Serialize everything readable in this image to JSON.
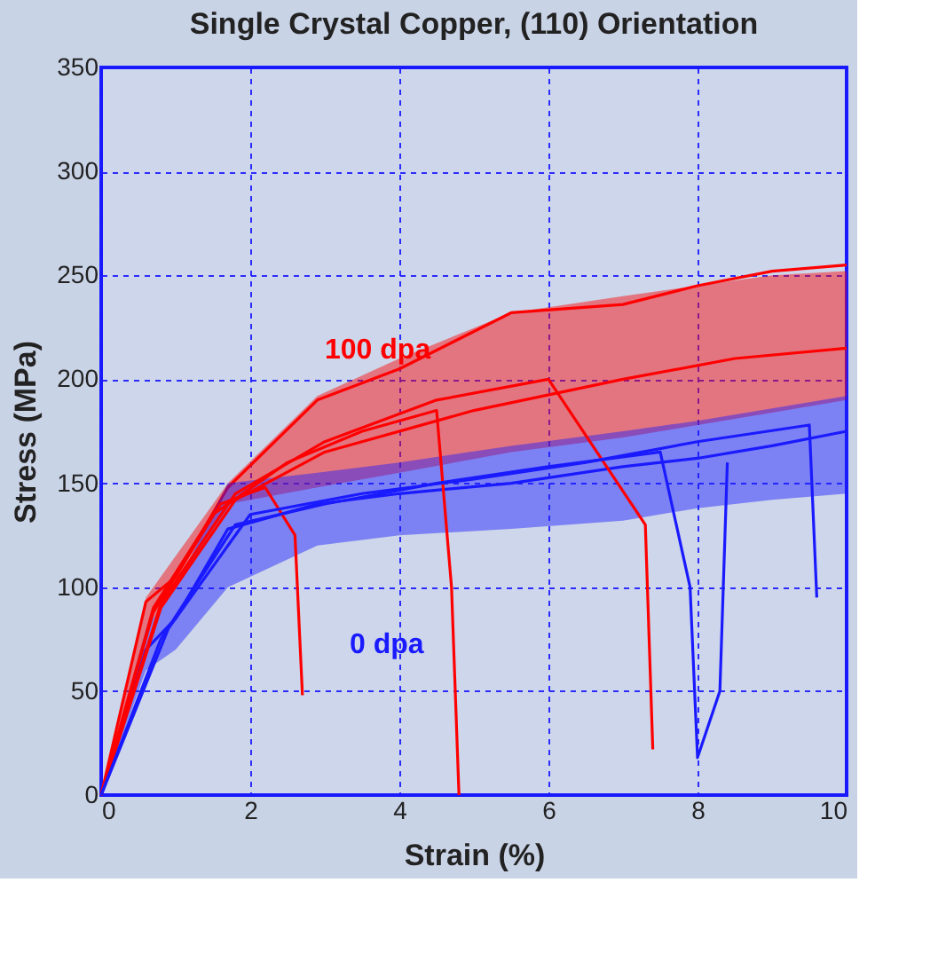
{
  "chart_data": {
    "type": "line",
    "title": "Single Crystal Copper, (110) Orientation",
    "xlabel": "Strain (%)",
    "ylabel": "Stress (MPa)",
    "xlim": [
      0,
      10
    ],
    "ylim": [
      0,
      350
    ],
    "xticks": [
      0,
      2,
      4,
      6,
      8,
      10
    ],
    "yticks": [
      0,
      50,
      100,
      150,
      200,
      250,
      300,
      350
    ],
    "grid": true,
    "line_style": "solid",
    "marker": "none",
    "series": [
      {
        "name": "100 dpa",
        "color": "#ff0000",
        "x": [
          0,
          0.6,
          1.0,
          1.7,
          2.9,
          4.0,
          5.5,
          7.0,
          8.0,
          9.0,
          10.0
        ],
        "values": [
          0,
          93,
          105,
          148,
          190,
          205,
          232,
          236,
          245,
          252,
          255
        ],
        "lower": [
          0,
          80,
          100,
          140,
          148,
          155,
          165,
          172,
          178,
          184,
          190
        ],
        "upper": [
          0,
          95,
          115,
          150,
          192,
          210,
          232,
          240,
          245,
          250,
          252
        ]
      },
      {
        "name": "0 dpa",
        "color": "#1a1aff",
        "x": [
          0,
          0.6,
          1.0,
          1.7,
          2.9,
          4.0,
          5.5,
          7.0,
          8.0,
          9.0,
          10.0
        ],
        "values": [
          0,
          70,
          85,
          128,
          140,
          145,
          150,
          158,
          162,
          168,
          175
        ],
        "lower": [
          0,
          60,
          70,
          100,
          120,
          125,
          128,
          132,
          138,
          142,
          145
        ],
        "upper": [
          0,
          80,
          100,
          150,
          155,
          160,
          168,
          175,
          180,
          186,
          192
        ]
      },
      {
        "color": "#ff0000",
        "x": [
          0,
          0.7,
          1.5,
          2.5,
          3.5,
          4.5,
          4.7,
          4.8
        ],
        "values": [
          0,
          90,
          135,
          160,
          175,
          185,
          100,
          0
        ]
      },
      {
        "color": "#ff0000",
        "x": [
          0,
          0.7,
          1.6,
          2.2,
          2.6,
          2.7
        ],
        "values": [
          0,
          88,
          140,
          148,
          125,
          48
        ]
      },
      {
        "color": "#ff0000",
        "x": [
          0,
          0.8,
          1.8,
          3.0,
          4.5,
          6.0,
          7.3,
          7.4
        ],
        "values": [
          0,
          92,
          145,
          170,
          190,
          200,
          130,
          22
        ]
      },
      {
        "color": "#ff0000",
        "x": [
          0,
          0.8,
          1.8,
          3.0,
          5.0,
          7.0,
          8.5,
          10.0
        ],
        "values": [
          0,
          90,
          142,
          165,
          185,
          200,
          210,
          215
        ]
      },
      {
        "color": "#1a1aff",
        "x": [
          0,
          0.8,
          1.8,
          3.0,
          4.5,
          6.0,
          7.5,
          7.9,
          8.0,
          8.3,
          8.4
        ],
        "values": [
          0,
          75,
          130,
          140,
          150,
          158,
          165,
          100,
          18,
          50,
          160
        ]
      },
      {
        "color": "#1a1aff",
        "x": [
          0,
          0.9,
          2.0,
          3.5,
          5.0,
          6.5,
          8.0,
          9.5,
          9.6
        ],
        "values": [
          0,
          80,
          135,
          145,
          152,
          160,
          170,
          178,
          95
        ]
      }
    ]
  }
}
